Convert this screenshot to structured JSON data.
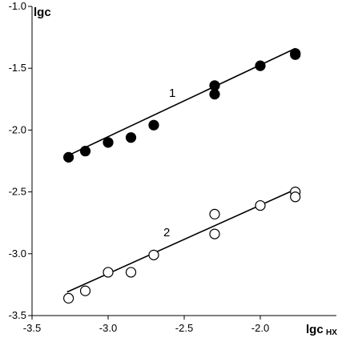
{
  "chart_data": {
    "type": "scatter",
    "title": "",
    "ylabel": "lgc",
    "xlabel_main": "lgc",
    "xlabel_sub": "HX",
    "xlim": [
      -3.5,
      -1.5
    ],
    "ylim": [
      -3.5,
      -1.0
    ],
    "xticks": [
      "-3.5",
      "-3.0",
      "-2.5",
      "-2.0"
    ],
    "xtick_values": [
      -3.5,
      -3.0,
      -2.5,
      -2.0
    ],
    "yticks": [
      "-1.0",
      "-1.5",
      "-2.0",
      "-2.5",
      "-3.0",
      "-3.5"
    ],
    "ytick_values": [
      -1.0,
      -1.5,
      -2.0,
      -2.5,
      -3.0,
      -3.5
    ],
    "series": [
      {
        "name": "1",
        "marker": "filled-circle",
        "color": "#000000",
        "x": [
          -3.26,
          -3.15,
          -3.0,
          -2.85,
          -2.7,
          -2.3,
          -2.3,
          -2.0,
          -1.77,
          -1.77
        ],
        "y": [
          -2.22,
          -2.17,
          -2.1,
          -2.06,
          -1.96,
          -1.71,
          -1.64,
          -1.48,
          -1.39,
          -1.38
        ],
        "fit": {
          "x": [
            -3.27,
            -1.77
          ],
          "y": [
            -2.21,
            -1.34
          ]
        }
      },
      {
        "name": "2",
        "marker": "open-circle",
        "color": "#000000",
        "x": [
          -3.26,
          -3.15,
          -3.0,
          -2.85,
          -2.7,
          -2.3,
          -2.3,
          -2.0,
          -1.77,
          -1.77
        ],
        "y": [
          -3.36,
          -3.3,
          -3.15,
          -3.15,
          -3.01,
          -2.84,
          -2.68,
          -2.61,
          -2.5,
          -2.54
        ],
        "fit": {
          "x": [
            -3.27,
            -1.77
          ],
          "y": [
            -3.31,
            -2.48
          ]
        }
      }
    ]
  }
}
